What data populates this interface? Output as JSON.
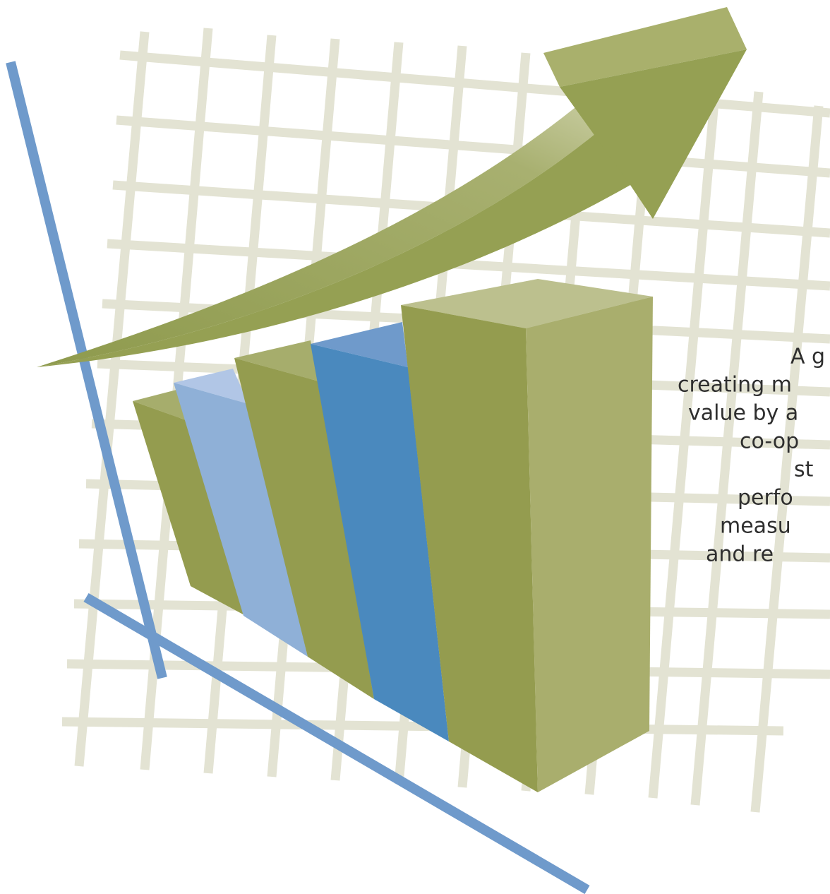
{
  "text_lines": [
    "A g",
    "creating m",
    "value by a",
    "co-op",
    "st",
    "perfo",
    "measu",
    "and re"
  ]
}
